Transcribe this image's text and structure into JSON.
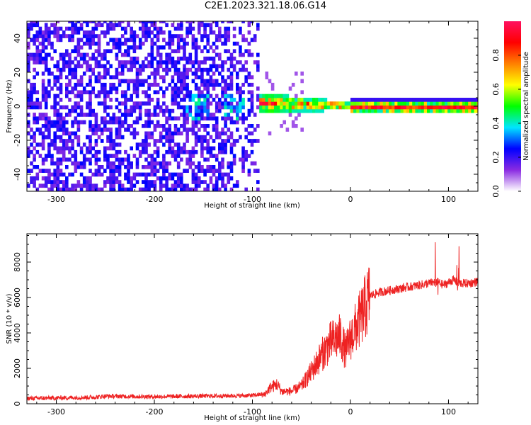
{
  "title": "C2E1.2023.321.18.06.G14",
  "chart_data": [
    {
      "type": "heatmap",
      "xlabel": "Height of straight line (km)",
      "ylabel": "Frequency (Hz)",
      "xlim": [
        -330,
        130
      ],
      "ylim": [
        -50,
        50
      ],
      "xticks": [
        -300,
        -200,
        -100,
        0,
        100
      ],
      "yticks": [
        -40,
        -20,
        0,
        20,
        40
      ],
      "colorbar": {
        "label": "Normalized spectral amplitude",
        "range": [
          0,
          1
        ],
        "ticks": [
          0.0,
          0.2,
          0.4,
          0.6,
          0.8
        ],
        "colors": [
          "#ffffff",
          "#8a2be2",
          "#0000ff",
          "#00e5ff",
          "#00ff00",
          "#ffff00",
          "#ff8000",
          "#ff0000",
          "#ff1060"
        ]
      },
      "grid": false
    },
    {
      "type": "line",
      "xlabel": "Height of straight line (km)",
      "ylabel": "SNR (10 * v/v)",
      "xlim": [
        -330,
        130
      ],
      "ylim": [
        0,
        9600
      ],
      "xticks": [
        -300,
        -200,
        -100,
        0,
        100
      ],
      "yticks": [
        0,
        2000,
        4000,
        6000,
        8000
      ],
      "series": [
        {
          "color": "#ee2222",
          "x": [
            -330,
            -300,
            -260,
            -250,
            -200,
            -160,
            -120,
            -100,
            -88,
            -82,
            -75,
            -70,
            -60,
            -50,
            -40,
            -30,
            -20,
            -10,
            -5,
            0,
            10,
            20,
            30,
            50,
            70,
            80,
            88,
            95,
            105,
            110,
            120,
            130
          ],
          "y": [
            250,
            280,
            320,
            380,
            350,
            380,
            400,
            420,
            500,
            900,
            1100,
            700,
            700,
            1000,
            1800,
            2700,
            3500,
            3800,
            2900,
            3700,
            4800,
            6100,
            6300,
            6500,
            6700,
            6800,
            6900,
            6700,
            7000,
            6800,
            6800,
            6900
          ]
        }
      ],
      "grid": false
    }
  ]
}
